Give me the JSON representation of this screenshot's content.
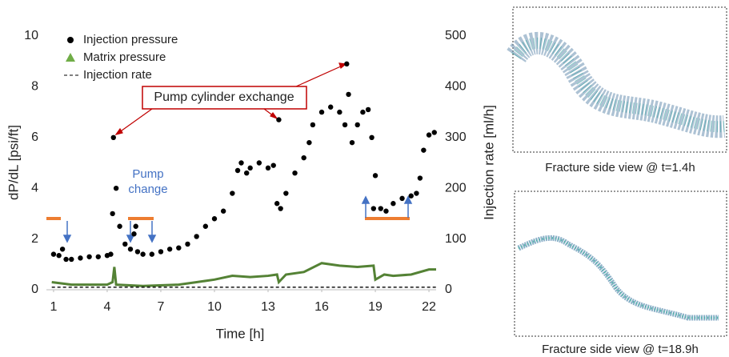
{
  "chart_data": {
    "type": "scatter",
    "x_label": "Time [h]",
    "y_label": "dP/dL [psi/ft]",
    "y2_label": "Injection rate [ml/h]",
    "xlim": [
      0.6,
      22.4
    ],
    "xticks": [
      1,
      4,
      7,
      10,
      13,
      16,
      19,
      22
    ],
    "ylim": [
      0,
      10
    ],
    "yticks": [
      0,
      2,
      4,
      6,
      8,
      10
    ],
    "y2lim": [
      0,
      500
    ],
    "y2ticks": [
      0,
      100,
      200,
      300,
      400,
      500
    ],
    "legend": "upper left",
    "series": [
      {
        "name": "Injection pressure",
        "type": "scatter",
        "color": "#000000",
        "x": [
          1.0,
          1.3,
          1.5,
          1.7,
          2.0,
          2.5,
          3.0,
          3.5,
          4.0,
          4.2,
          4.3,
          4.35,
          4.5,
          4.7,
          5.0,
          5.3,
          5.5,
          5.6,
          5.7,
          6.0,
          6.5,
          7.0,
          7.5,
          8.0,
          8.5,
          9.0,
          9.5,
          10.0,
          10.5,
          11.0,
          11.3,
          11.5,
          11.8,
          12.0,
          12.5,
          13.0,
          13.3,
          13.5,
          13.6,
          13.7,
          14.0,
          14.5,
          15.0,
          15.3,
          15.5,
          16.0,
          16.5,
          17.0,
          17.3,
          17.4,
          17.5,
          17.7,
          18.0,
          18.3,
          18.6,
          18.8,
          18.9,
          19.0,
          19.3,
          19.6,
          20.0,
          20.5,
          21.0,
          21.3,
          21.5,
          21.7,
          22.0,
          22.3
        ],
        "values": [
          1.4,
          1.35,
          1.6,
          1.2,
          1.2,
          1.25,
          1.3,
          1.3,
          1.35,
          1.4,
          3.0,
          6.0,
          4.0,
          2.5,
          1.8,
          1.6,
          2.2,
          2.5,
          1.5,
          1.4,
          1.4,
          1.5,
          1.6,
          1.65,
          1.8,
          2.1,
          2.5,
          2.8,
          3.1,
          3.8,
          4.7,
          5.0,
          4.6,
          4.8,
          5.0,
          4.8,
          4.9,
          3.4,
          6.7,
          3.2,
          3.8,
          4.6,
          5.2,
          5.8,
          6.5,
          7.0,
          7.2,
          7.0,
          6.5,
          8.9,
          7.7,
          5.8,
          6.5,
          7.0,
          7.1,
          6.0,
          3.2,
          4.5,
          3.2,
          3.1,
          3.4,
          3.6,
          3.7,
          3.8,
          4.4,
          5.5,
          6.1,
          6.2
        ]
      },
      {
        "name": "Matrix pressure",
        "type": "line",
        "color": "#548235",
        "x": [
          0.9,
          2.0,
          4.0,
          4.3,
          4.4,
          4.5,
          6.0,
          8.0,
          9.0,
          10.0,
          11.0,
          12.0,
          13.0,
          13.5,
          13.6,
          14.0,
          15.0,
          16.0,
          17.0,
          18.0,
          18.9,
          19.0,
          19.5,
          20.0,
          21.0,
          22.0,
          22.4
        ],
        "values": [
          0.3,
          0.2,
          0.2,
          0.3,
          0.9,
          0.2,
          0.15,
          0.2,
          0.3,
          0.4,
          0.55,
          0.5,
          0.55,
          0.6,
          0.3,
          0.6,
          0.7,
          1.05,
          0.95,
          0.9,
          0.95,
          0.4,
          0.6,
          0.55,
          0.6,
          0.8,
          0.8
        ]
      },
      {
        "name": "Injection rate",
        "type": "line",
        "dash": true,
        "axis": "y2",
        "color": "#000000",
        "x": [
          0.9,
          22.4
        ],
        "values": [
          5,
          5
        ]
      }
    ],
    "annotations": [
      "Pump cylinder exchange",
      "Pump change"
    ]
  },
  "panels": [
    {
      "caption": "Fracture side view @ t=1.4h"
    },
    {
      "caption": "Fracture side view @ t=18.9h"
    }
  ]
}
